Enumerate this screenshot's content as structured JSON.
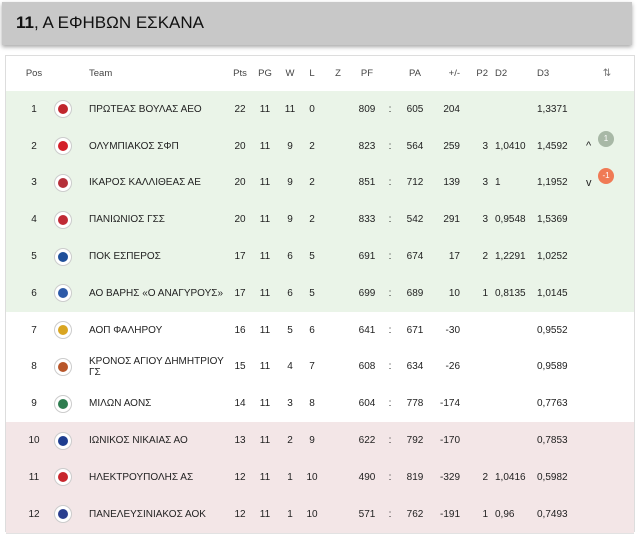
{
  "header": {
    "number": "11",
    "title": ", Α ΕΦΗΒΩΝ ΕΣΚΑΝΑ"
  },
  "columns": {
    "pos": "Pos",
    "team": "Team",
    "pts": "Pts",
    "pg": "PG",
    "w": "W",
    "l": "L",
    "z": "Z",
    "pf": "PF",
    "pa": "PA",
    "diff": "+/-",
    "p2": "P2",
    "d2": "D2",
    "d3": "D3",
    "sort_icon": "⇅"
  },
  "rows": [
    {
      "pos": "1",
      "team": "ΠΡΩΤΕΑΣ ΒΟΥΛΑΣ ΑΕΟ",
      "pts": "22",
      "pg": "11",
      "w": "11",
      "l": "0",
      "z": "",
      "pf": "809",
      "colon": ":",
      "pa": "605",
      "diff": "204",
      "p2": "",
      "d2": "",
      "d3": "1,3371",
      "zone": "green",
      "logo_color": "#c0262d",
      "move": "",
      "badge": ""
    },
    {
      "pos": "2",
      "team": "ΟΛΥΜΠΙΑΚΟΣ ΣΦΠ",
      "pts": "20",
      "pg": "11",
      "w": "9",
      "l": "2",
      "z": "",
      "pf": "823",
      "colon": ":",
      "pa": "564",
      "diff": "259",
      "p2": "3",
      "d2": "1,0410",
      "d3": "1,4592",
      "zone": "green",
      "logo_color": "#d3202a",
      "move": "^",
      "badge": "1"
    },
    {
      "pos": "3",
      "team": "ΙΚΑΡΟΣ ΚΑΛΛΙΘΕΑΣ ΑΕ",
      "pts": "20",
      "pg": "11",
      "w": "9",
      "l": "2",
      "z": "",
      "pf": "851",
      "colon": ":",
      "pa": "712",
      "diff": "139",
      "p2": "3",
      "d2": "1",
      "d3": "1,1952",
      "zone": "green",
      "logo_color": "#b5303a",
      "move": "v",
      "badge": "-1"
    },
    {
      "pos": "4",
      "team": "ΠΑΝΙΩΝΙΟΣ ΓΣΣ",
      "pts": "20",
      "pg": "11",
      "w": "9",
      "l": "2",
      "z": "",
      "pf": "833",
      "colon": ":",
      "pa": "542",
      "diff": "291",
      "p2": "3",
      "d2": "0,9548",
      "d3": "1,5369",
      "zone": "green",
      "logo_color": "#c02a35",
      "move": "",
      "badge": ""
    },
    {
      "pos": "5",
      "team": "ΠΟΚ ΕΣΠΕΡΟΣ",
      "pts": "17",
      "pg": "11",
      "w": "6",
      "l": "5",
      "z": "",
      "pf": "691",
      "colon": ":",
      "pa": "674",
      "diff": "17",
      "p2": "2",
      "d2": "1,2291",
      "d3": "1,0252",
      "zone": "green",
      "logo_color": "#1f4f9a",
      "move": "",
      "badge": ""
    },
    {
      "pos": "6",
      "team": "ΑΟ ΒΑΡΗΣ «Ο ΑΝΑΓΥΡΟΥΣ»",
      "pts": "17",
      "pg": "11",
      "w": "6",
      "l": "5",
      "z": "",
      "pf": "699",
      "colon": ":",
      "pa": "689",
      "diff": "10",
      "p2": "1",
      "d2": "0,8135",
      "d3": "1,0145",
      "zone": "green",
      "logo_color": "#2d5aa8",
      "move": "",
      "badge": ""
    },
    {
      "pos": "7",
      "team": "ΑΟΠ ΦΑΛΗΡΟΥ",
      "pts": "16",
      "pg": "11",
      "w": "5",
      "l": "6",
      "z": "",
      "pf": "641",
      "colon": ":",
      "pa": "671",
      "diff": "-30",
      "p2": "",
      "d2": "",
      "d3": "0,9552",
      "zone": "white",
      "logo_color": "#d9a521",
      "move": "",
      "badge": ""
    },
    {
      "pos": "8",
      "team": "ΚΡΟΝΟΣ ΑΓΙΟΥ ΔΗΜΗΤΡΙΟΥ ΓΣ",
      "pts": "15",
      "pg": "11",
      "w": "4",
      "l": "7",
      "z": "",
      "pf": "608",
      "colon": ":",
      "pa": "634",
      "diff": "-26",
      "p2": "",
      "d2": "",
      "d3": "0,9589",
      "zone": "white",
      "logo_color": "#b8562a",
      "move": "",
      "badge": ""
    },
    {
      "pos": "9",
      "team": "ΜΙΛΩΝ ΑΟΝΣ",
      "pts": "14",
      "pg": "11",
      "w": "3",
      "l": "8",
      "z": "",
      "pf": "604",
      "colon": ":",
      "pa": "778",
      "diff": "-174",
      "p2": "",
      "d2": "",
      "d3": "0,7763",
      "zone": "white",
      "logo_color": "#2e7d4f",
      "move": "",
      "badge": ""
    },
    {
      "pos": "10",
      "team": "ΙΩΝΙΚΟΣ ΝΙΚΑΙΑΣ ΑΟ",
      "pts": "13",
      "pg": "11",
      "w": "2",
      "l": "9",
      "z": "",
      "pf": "622",
      "colon": ":",
      "pa": "792",
      "diff": "-170",
      "p2": "",
      "d2": "",
      "d3": "0,7853",
      "zone": "red",
      "logo_color": "#1e3d8f",
      "move": "",
      "badge": ""
    },
    {
      "pos": "11",
      "team": "ΗΛΕΚΤΡΟΥΠΟΛΗΣ ΑΣ",
      "pts": "12",
      "pg": "11",
      "w": "1",
      "l": "10",
      "z": "",
      "pf": "490",
      "colon": ":",
      "pa": "819",
      "diff": "-329",
      "p2": "2",
      "d2": "1,0416",
      "d3": "0,5982",
      "zone": "red",
      "logo_color": "#c8262d",
      "move": "",
      "badge": ""
    },
    {
      "pos": "12",
      "team": "ΠΑΝΕΛΕΥΣΙΝΙΑΚΟΣ ΑΟΚ",
      "pts": "12",
      "pg": "11",
      "w": "1",
      "l": "10",
      "z": "",
      "pf": "571",
      "colon": ":",
      "pa": "762",
      "diff": "-191",
      "p2": "1",
      "d2": "0,96",
      "d3": "0,7493",
      "zone": "red",
      "logo_color": "#2b3f8f",
      "move": "",
      "badge": ""
    }
  ]
}
